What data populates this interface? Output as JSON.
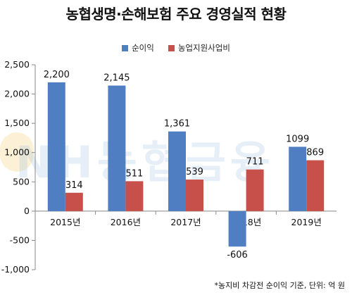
{
  "title": "농협생명·손해보험 주요 경영실적 현황",
  "footnote": "*농지비 차감전 순이익 기준, 단위: 억 원",
  "watermark": "NH농협금융",
  "colors": {
    "series1": "#4f7fc2",
    "series2": "#c8504b",
    "axis": "#888888"
  },
  "chart_data": {
    "type": "bar",
    "categories": [
      "2015년",
      "2016년",
      "2017년",
      "2018년",
      "2019년"
    ],
    "series": [
      {
        "name": "순이익",
        "values": [
          2200,
          2145,
          1361,
          -606,
          1099
        ],
        "labels": [
          "2,200",
          "2,145",
          "1,361",
          "-606",
          "1099"
        ]
      },
      {
        "name": "농업지원사업비",
        "values": [
          314,
          511,
          539,
          711,
          869
        ],
        "labels": [
          "314",
          "511",
          "539",
          "711",
          "869"
        ]
      }
    ],
    "ylim": [
      -1000,
      2500
    ],
    "yticks": [
      -1000,
      -500,
      0,
      500,
      1000,
      1500,
      2000,
      2500
    ],
    "ytick_labels": [
      "-1,000",
      "-500",
      "0",
      "500",
      "1,000",
      "1,500",
      "2,000",
      "2,500"
    ],
    "legend_position": "top-center",
    "grid": false
  }
}
